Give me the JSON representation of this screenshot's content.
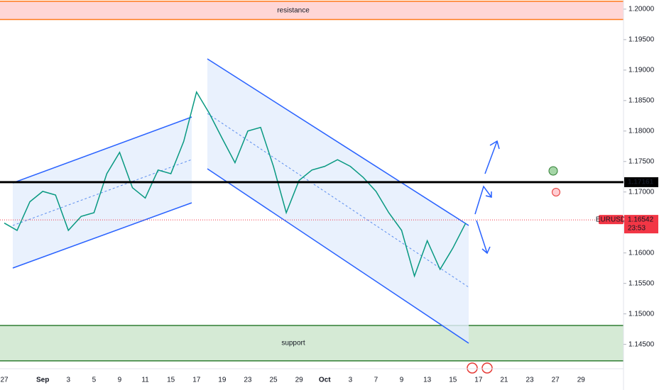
{
  "chart_data": {
    "type": "line",
    "symbol": "EURUSD",
    "last_price": 1.16542,
    "countdown": "23:53",
    "level": 1.17161,
    "zones": [
      {
        "label": "resistance",
        "range": [
          1.1983,
          1.2013
        ],
        "color": "#ffd6d6",
        "border": "#ff7a1a",
        "text_color": "#9c27b0"
      },
      {
        "label": "support",
        "range": [
          1.1423,
          1.1481
        ],
        "color": "#d5ead5",
        "border": "#2e7d32",
        "text_color": "#9c27b0"
      }
    ],
    "categories": [
      "27",
      null,
      null,
      "Sep",
      null,
      "3",
      null,
      "5",
      null,
      "9",
      null,
      "11",
      null,
      "15",
      null,
      "17",
      null,
      "19",
      null,
      "23",
      null,
      "25",
      null,
      "29",
      null,
      "Oct",
      null,
      "3",
      null,
      "7",
      null,
      "9",
      null,
      "13",
      null,
      "15",
      null,
      "17",
      null,
      "21",
      null,
      "23",
      null,
      "27",
      null,
      "29"
    ],
    "series": [
      {
        "name": "EURUSD",
        "color": "#089981",
        "values": [
          1.1649,
          1.1637,
          1.1684,
          1.1701,
          1.1695,
          1.1637,
          1.166,
          1.1666,
          1.173,
          1.1765,
          1.1707,
          1.169,
          1.1736,
          1.173,
          1.1783,
          1.1864,
          1.1829,
          1.1788,
          1.1748,
          1.18,
          1.1806,
          1.1742,
          1.1666,
          1.1719,
          1.1736,
          1.1742,
          1.1753,
          1.1742,
          1.1724,
          1.1701,
          1.1666,
          1.1637,
          1.1562,
          1.162,
          1.1573,
          1.1608,
          1.1649,
          null,
          null,
          null,
          null,
          null,
          null,
          null,
          null,
          null
        ]
      }
    ],
    "ylim": [
      1.141,
      1.2015
    ],
    "yticks": [
      {
        "value": 1.145,
        "label": "1.14500"
      },
      {
        "value": 1.15,
        "label": "1.15000"
      },
      {
        "value": 1.155,
        "label": "1.15500"
      },
      {
        "value": 1.16,
        "label": "1.16000"
      },
      {
        "value": 1.165,
        "label": "1.16500"
      },
      {
        "value": 1.17,
        "label": "1.17000"
      },
      {
        "value": 1.175,
        "label": "1.17500"
      },
      {
        "value": 1.18,
        "label": "1.18000"
      },
      {
        "value": 1.185,
        "label": "1.18500"
      },
      {
        "value": 1.19,
        "label": "1.19000"
      },
      {
        "value": 1.195,
        "label": "1.19500"
      },
      {
        "value": 1.2,
        "label": "1.20000"
      }
    ]
  }
}
